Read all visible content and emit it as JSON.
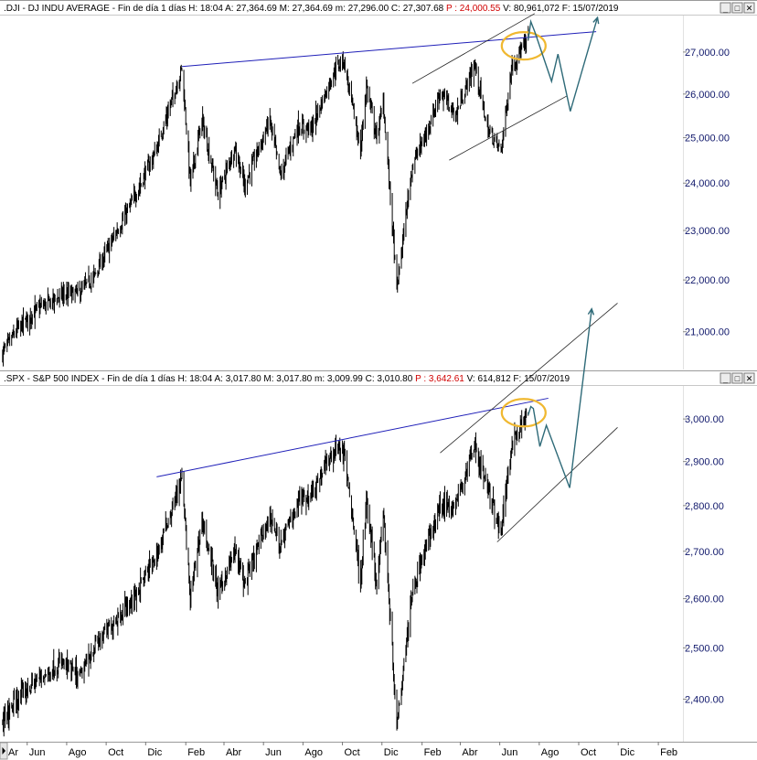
{
  "colors": {
    "axis_text": "#10186b",
    "price": "#000000",
    "trendline": "#1f1fb8",
    "channel": "#222222",
    "projection": "#2e6a78",
    "highlight": "#f0b830",
    "hdr_red": "#d00000"
  },
  "window_buttons": {
    "minimize": "_",
    "maximize": "□",
    "close": "✕"
  },
  "chart_data": [
    {
      "type": "line",
      "header": {
        "symbol": ".DJI",
        "name": "DJ INDU AVERAGE",
        "period": "Fin de día 1 días",
        "stats_black": "H: 18:04  A: 27,364.69  M: 27,364.69  m: 27,296.00  C: 27,307.68",
        "stats_red": "P : 24,000.55",
        "stats_tail": "V: 80,961,072  F: 15/07/2019"
      },
      "y_ticks": [
        "27,000.00",
        "26,000.00",
        "25,000.00",
        "24,000.00",
        "23,000.00",
        "22,000.00",
        "21,000.00"
      ],
      "y_tick_values": [
        27000,
        26000,
        25000,
        24000,
        23000,
        22000,
        21000
      ],
      "ylim": [
        20300,
        27900
      ],
      "x_start": "2017-04-20",
      "x_end": "2020-03-10",
      "y_scale": "log",
      "series": [
        {
          "x": [
            "2017-04-24",
            "2017-05-17",
            "2017-06-19",
            "2017-07-25",
            "2017-08-21",
            "2017-09-12",
            "2017-10-16",
            "2017-11-07",
            "2017-12-18",
            "2018-01-26",
            "2018-02-08",
            "2018-02-26",
            "2018-03-23",
            "2018-04-18",
            "2018-05-03",
            "2018-06-11",
            "2018-06-27",
            "2018-07-24",
            "2018-08-14",
            "2018-09-20",
            "2018-10-03",
            "2018-10-29",
            "2018-11-07",
            "2018-11-23",
            "2018-12-03",
            "2018-12-24",
            "2019-01-17",
            "2019-02-08",
            "2019-03-01",
            "2019-03-25",
            "2019-04-23",
            "2019-05-13",
            "2019-06-03",
            "2019-06-20",
            "2019-07-15"
          ],
          "values": [
            20600,
            21050,
            21450,
            21700,
            21750,
            22050,
            22950,
            23500,
            24750,
            26600,
            24000,
            25400,
            23750,
            24800,
            23950,
            25400,
            24150,
            25250,
            25200,
            26600,
            26800,
            24700,
            26200,
            25000,
            25800,
            21800,
            24400,
            25100,
            26050,
            25500,
            26700,
            25200,
            24700,
            26700,
            27300
          ]
        }
      ],
      "annotations": {
        "trendline_from": [
          "2018-01-26",
          26650
        ],
        "trendline_to": [
          "2019-10-28",
          27500
        ],
        "channel_upper_from": [
          "2019-01-17",
          26250
        ],
        "channel_upper_to": [
          "2019-07-25",
          27950
        ],
        "channel_lower_from": [
          "2019-03-15",
          24500
        ],
        "channel_lower_to": [
          "2019-09-12",
          25950
        ],
        "projection": [
          [
            "2019-07-15",
            27300
          ],
          [
            "2019-07-19",
            27750
          ],
          [
            "2019-07-25",
            27500
          ],
          [
            "2019-08-20",
            26300
          ],
          [
            "2019-08-30",
            26950
          ],
          [
            "2019-09-18",
            25600
          ],
          [
            "2019-10-30",
            27850
          ]
        ],
        "highlight_center": [
          "2019-07-08",
          27150
        ]
      }
    },
    {
      "type": "line",
      "header": {
        "symbol": ".SPX",
        "name": "S&P 500 INDEX",
        "period": "Fin de día 1 días",
        "stats_black": "H: 18:04  A: 3,017.80  M: 3,017.80  m: 3,009.99  C: 3,010.80",
        "stats_red": "P : 3,642.61",
        "stats_tail": "V: 614,812  F: 15/07/2019"
      },
      "y_ticks": [
        "3,000.00",
        "2,900.00",
        "2,800.00",
        "2,700.00",
        "2,600.00",
        "2,500.00",
        "2,400.00"
      ],
      "y_tick_values": [
        3000,
        2900,
        2800,
        2700,
        2600,
        2500,
        2400
      ],
      "ylim": [
        2320,
        3080
      ],
      "x_start": "2017-04-20",
      "x_end": "2020-03-10",
      "y_scale": "log",
      "series": [
        {
          "x": [
            "2017-04-24",
            "2017-05-17",
            "2017-06-19",
            "2017-07-25",
            "2017-08-21",
            "2017-09-12",
            "2017-10-16",
            "2017-11-07",
            "2017-12-18",
            "2018-01-26",
            "2018-02-08",
            "2018-02-26",
            "2018-03-23",
            "2018-04-18",
            "2018-05-03",
            "2018-06-11",
            "2018-06-27",
            "2018-07-24",
            "2018-08-14",
            "2018-09-20",
            "2018-10-03",
            "2018-10-29",
            "2018-11-07",
            "2018-11-23",
            "2018-12-03",
            "2018-12-24",
            "2019-01-17",
            "2019-02-08",
            "2019-03-01",
            "2019-03-25",
            "2019-04-23",
            "2019-05-13",
            "2019-06-03",
            "2019-06-20",
            "2019-07-15"
          ],
          "values": [
            2360,
            2400,
            2440,
            2470,
            2440,
            2500,
            2560,
            2590,
            2690,
            2860,
            2600,
            2770,
            2610,
            2700,
            2630,
            2780,
            2710,
            2810,
            2830,
            2930,
            2920,
            2640,
            2810,
            2630,
            2790,
            2350,
            2620,
            2710,
            2800,
            2800,
            2940,
            2840,
            2740,
            2950,
            3010
          ]
        }
      ],
      "annotations": {
        "trendline_from": [
          "2017-12-18",
          2865
        ],
        "trendline_to": [
          "2019-08-15",
          3050
        ],
        "channel_upper_from": [
          "2019-03-01",
          2920
        ],
        "channel_upper_to": [
          "2019-11-30",
          3290
        ],
        "channel_lower_from": [
          "2019-05-28",
          2720
        ],
        "channel_lower_to": [
          "2019-11-30",
          2980
        ],
        "projection": [
          [
            "2019-07-15",
            3010
          ],
          [
            "2019-07-19",
            3030
          ],
          [
            "2019-07-23",
            3025
          ],
          [
            "2019-08-02",
            2935
          ],
          [
            "2019-08-12",
            2985
          ],
          [
            "2019-09-17",
            2840
          ],
          [
            "2019-10-21",
            3275
          ]
        ],
        "highlight_center": [
          "2019-07-08",
          3015
        ]
      }
    }
  ],
  "x_ticks": [
    "Jun",
    "Ago",
    "Oct",
    "Dic",
    "Feb",
    "Abr",
    "Jun",
    "Ago",
    "Oct",
    "Dic",
    "Feb",
    "Abr",
    "Jun",
    "Ago",
    "Oct",
    "Dic",
    "Feb"
  ],
  "x_tick_dates": [
    "2017-06-01",
    "2017-08-01",
    "2017-10-01",
    "2017-12-01",
    "2018-02-01",
    "2018-04-01",
    "2018-06-01",
    "2018-08-01",
    "2018-10-01",
    "2018-12-01",
    "2019-02-01",
    "2019-04-01",
    "2019-06-01",
    "2019-08-01",
    "2019-10-01",
    "2019-12-01",
    "2020-02-01"
  ],
  "x_cut_label": "Ar"
}
